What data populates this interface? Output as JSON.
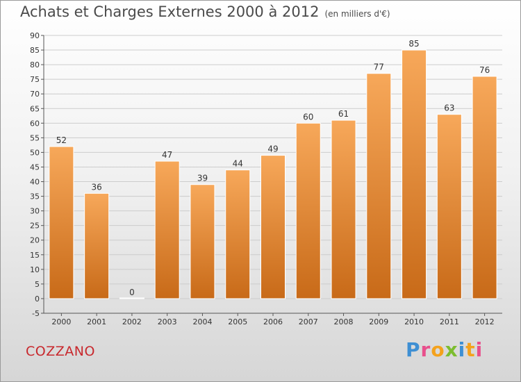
{
  "header": {
    "title": "Achats et Charges Externes 2000 à 2012",
    "unit": "(en milliers d'€)"
  },
  "footer": {
    "town": "COZZANO",
    "brand": "Proxiti"
  },
  "colors": {
    "bar_light": "#f7a85a",
    "bar_dark": "#c86a18",
    "grid": "#cccccc",
    "town": "#c8282d"
  },
  "chart_data": {
    "type": "bar",
    "title": "Achats et Charges Externes 2000 à 2012",
    "subtitle": "(en milliers d'€)",
    "categories": [
      "2000",
      "2001",
      "2002",
      "2003",
      "2004",
      "2005",
      "2006",
      "2007",
      "2008",
      "2009",
      "2010",
      "2011",
      "2012"
    ],
    "values": [
      52,
      36,
      0,
      47,
      39,
      44,
      49,
      60,
      61,
      77,
      85,
      63,
      76
    ],
    "ylim": [
      -5,
      90
    ],
    "ytick_step": 5,
    "grid": true,
    "legend": "none"
  }
}
